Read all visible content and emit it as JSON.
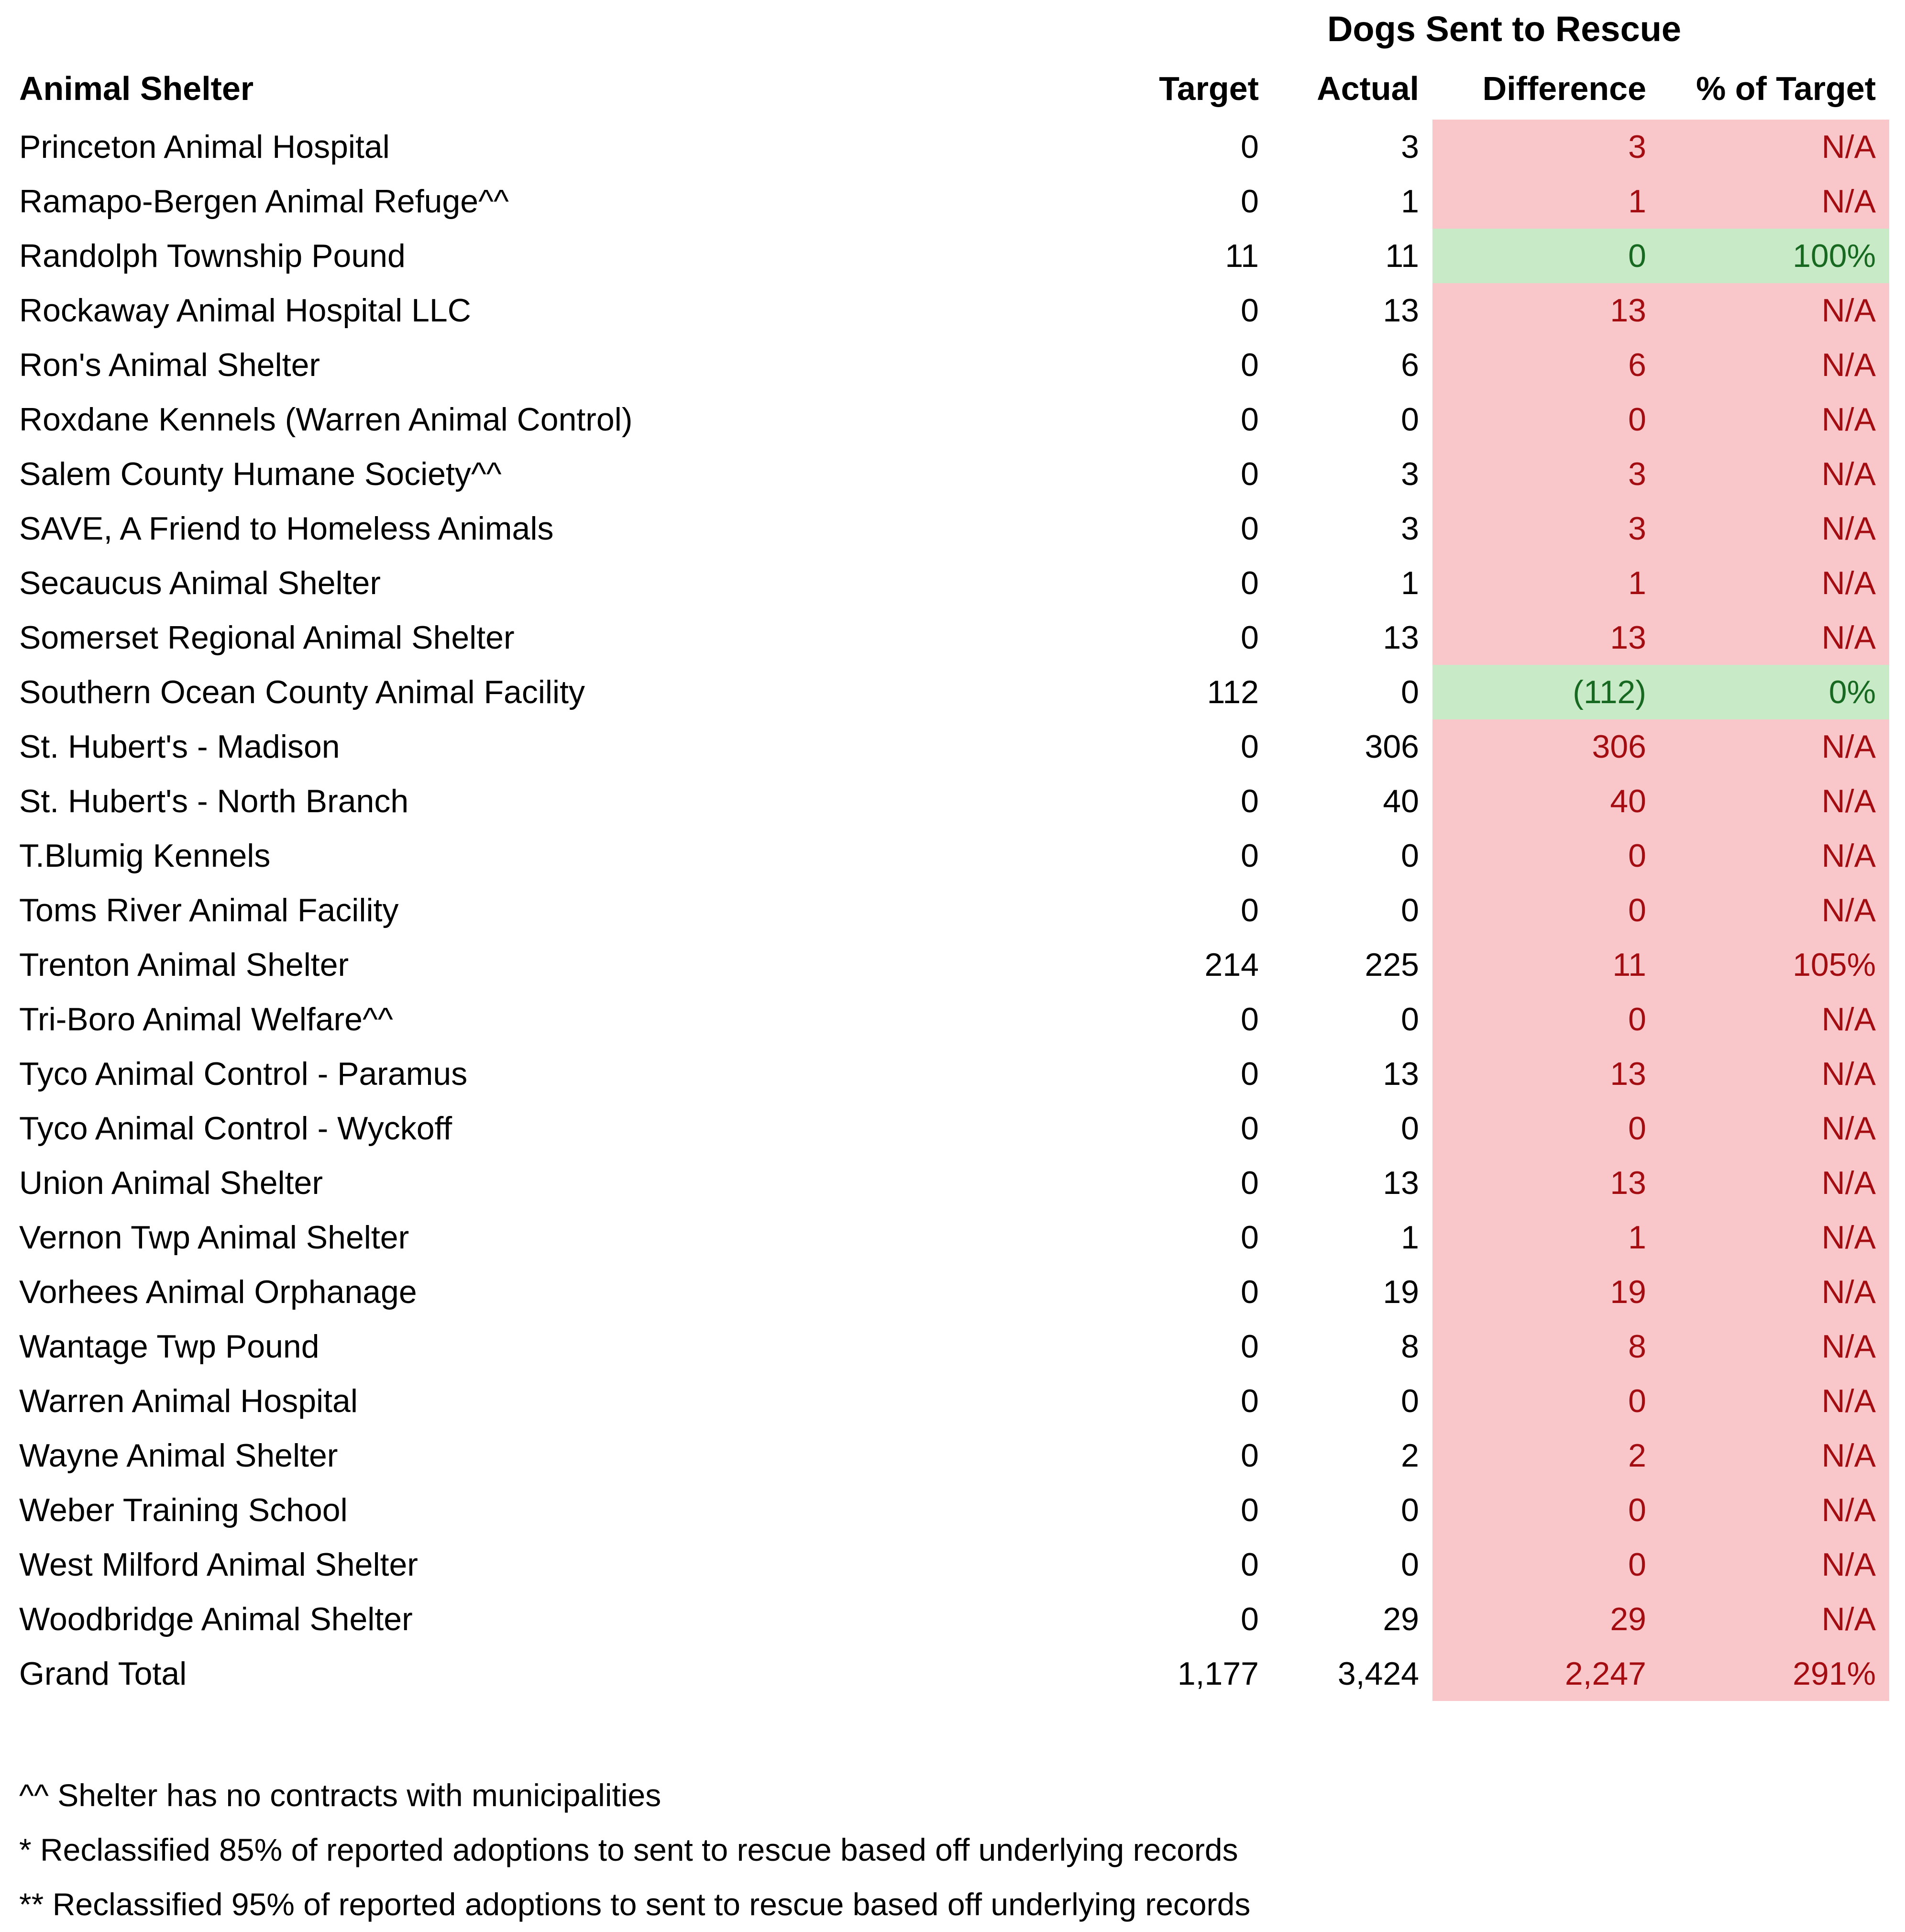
{
  "title": "Dogs Sent to Rescue",
  "columns": {
    "shelter": "Animal Shelter",
    "target": "Target",
    "actual": "Actual",
    "difference": "Difference",
    "pct_of_target": "% of Target"
  },
  "rows": [
    {
      "shelter": "Princeton Animal Hospital",
      "target": "0",
      "actual": "3",
      "difference": "3",
      "pct_of_target": "N/A",
      "status": "missed"
    },
    {
      "shelter": "Ramapo-Bergen Animal Refuge^^",
      "target": "0",
      "actual": "1",
      "difference": "1",
      "pct_of_target": "N/A",
      "status": "missed"
    },
    {
      "shelter": "Randolph Township Pound",
      "target": "11",
      "actual": "11",
      "difference": "0",
      "pct_of_target": "100%",
      "status": "met"
    },
    {
      "shelter": "Rockaway Animal Hospital LLC",
      "target": "0",
      "actual": "13",
      "difference": "13",
      "pct_of_target": "N/A",
      "status": "missed"
    },
    {
      "shelter": "Ron's Animal Shelter",
      "target": "0",
      "actual": "6",
      "difference": "6",
      "pct_of_target": "N/A",
      "status": "missed"
    },
    {
      "shelter": "Roxdane Kennels (Warren Animal Control)",
      "target": "0",
      "actual": "0",
      "difference": "0",
      "pct_of_target": "N/A",
      "status": "missed"
    },
    {
      "shelter": "Salem County Humane Society^^",
      "target": "0",
      "actual": "3",
      "difference": "3",
      "pct_of_target": "N/A",
      "status": "missed"
    },
    {
      "shelter": "SAVE, A Friend to Homeless Animals",
      "target": "0",
      "actual": "3",
      "difference": "3",
      "pct_of_target": "N/A",
      "status": "missed"
    },
    {
      "shelter": "Secaucus Animal Shelter",
      "target": "0",
      "actual": "1",
      "difference": "1",
      "pct_of_target": "N/A",
      "status": "missed"
    },
    {
      "shelter": "Somerset Regional Animal Shelter",
      "target": "0",
      "actual": "13",
      "difference": "13",
      "pct_of_target": "N/A",
      "status": "missed"
    },
    {
      "shelter": "Southern Ocean County Animal Facility",
      "target": "112",
      "actual": "0",
      "difference": "(112)",
      "pct_of_target": "0%",
      "status": "met"
    },
    {
      "shelter": "St. Hubert's - Madison",
      "target": "0",
      "actual": "306",
      "difference": "306",
      "pct_of_target": "N/A",
      "status": "missed"
    },
    {
      "shelter": "St. Hubert's - North Branch",
      "target": "0",
      "actual": "40",
      "difference": "40",
      "pct_of_target": "N/A",
      "status": "missed"
    },
    {
      "shelter": "T.Blumig Kennels",
      "target": "0",
      "actual": "0",
      "difference": "0",
      "pct_of_target": "N/A",
      "status": "missed"
    },
    {
      "shelter": "Toms River Animal Facility",
      "target": "0",
      "actual": "0",
      "difference": "0",
      "pct_of_target": "N/A",
      "status": "missed"
    },
    {
      "shelter": "Trenton Animal Shelter",
      "target": "214",
      "actual": "225",
      "difference": "11",
      "pct_of_target": "105%",
      "status": "missed"
    },
    {
      "shelter": "Tri-Boro Animal Welfare^^",
      "target": "0",
      "actual": "0",
      "difference": "0",
      "pct_of_target": "N/A",
      "status": "missed"
    },
    {
      "shelter": "Tyco Animal Control - Paramus",
      "target": "0",
      "actual": "13",
      "difference": "13",
      "pct_of_target": "N/A",
      "status": "missed"
    },
    {
      "shelter": "Tyco Animal Control - Wyckoff",
      "target": "0",
      "actual": "0",
      "difference": "0",
      "pct_of_target": "N/A",
      "status": "missed"
    },
    {
      "shelter": "Union Animal Shelter",
      "target": "0",
      "actual": "13",
      "difference": "13",
      "pct_of_target": "N/A",
      "status": "missed"
    },
    {
      "shelter": "Vernon Twp Animal Shelter",
      "target": "0",
      "actual": "1",
      "difference": "1",
      "pct_of_target": "N/A",
      "status": "missed"
    },
    {
      "shelter": "Vorhees Animal Orphanage",
      "target": "0",
      "actual": "19",
      "difference": "19",
      "pct_of_target": "N/A",
      "status": "missed"
    },
    {
      "shelter": "Wantage Twp Pound",
      "target": "0",
      "actual": "8",
      "difference": "8",
      "pct_of_target": "N/A",
      "status": "missed"
    },
    {
      "shelter": "Warren Animal Hospital",
      "target": "0",
      "actual": "0",
      "difference": "0",
      "pct_of_target": "N/A",
      "status": "missed"
    },
    {
      "shelter": "Wayne Animal Shelter",
      "target": "0",
      "actual": "2",
      "difference": "2",
      "pct_of_target": "N/A",
      "status": "missed"
    },
    {
      "shelter": "Weber Training School",
      "target": "0",
      "actual": "0",
      "difference": "0",
      "pct_of_target": "N/A",
      "status": "missed"
    },
    {
      "shelter": "West Milford Animal Shelter",
      "target": "0",
      "actual": "0",
      "difference": "0",
      "pct_of_target": "N/A",
      "status": "missed"
    },
    {
      "shelter": "Woodbridge Animal Shelter",
      "target": "0",
      "actual": "29",
      "difference": "29",
      "pct_of_target": "N/A",
      "status": "missed"
    },
    {
      "shelter": "Grand Total",
      "target": "1,177",
      "actual": "3,424",
      "difference": "2,247",
      "pct_of_target": "291%",
      "status": "missed"
    }
  ],
  "footnotes": [
    "^^ Shelter has no contracts with municipalities",
    "* Reclassified 85% of reported adoptions to sent to rescue based off underlying records",
    "** Reclassified 95% of reported adoptions to sent to rescue based off underlying records"
  ],
  "colors": {
    "negative_bg": "#f9c7ca",
    "negative_text": "#a30d12",
    "positive_bg": "#c9eac6",
    "positive_text": "#176921"
  }
}
